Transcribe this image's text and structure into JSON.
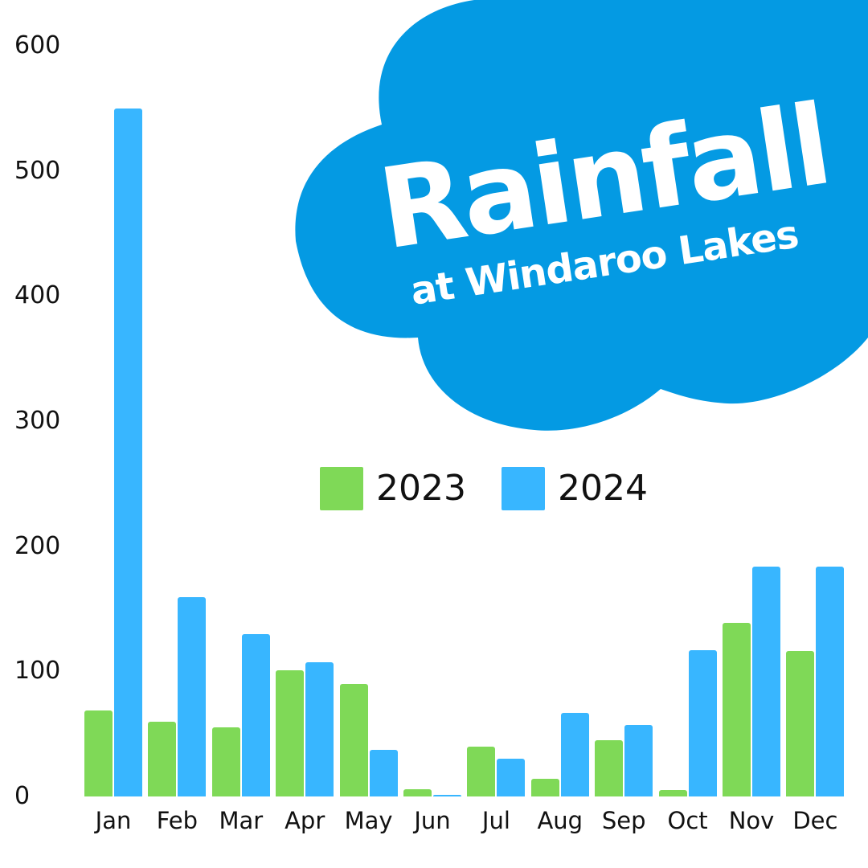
{
  "title": {
    "main": "Rainfall",
    "subtitle": "at Windaroo Lakes"
  },
  "colors": {
    "cloud": "#049ae3",
    "series_2023": "#7fd957",
    "series_2024": "#38b6ff",
    "text": "#111111",
    "background": "#ffffff"
  },
  "legend": [
    {
      "label": "2023",
      "color": "#7fd957"
    },
    {
      "label": "2024",
      "color": "#38b6ff"
    }
  ],
  "chart_data": {
    "type": "bar",
    "title": "Rainfall at Windaroo Lakes",
    "xlabel": "",
    "ylabel": "",
    "categories": [
      "Jan",
      "Feb",
      "Mar",
      "Apr",
      "May",
      "Jun",
      "Jul",
      "Aug",
      "Sep",
      "Oct",
      "Nov",
      "Dec"
    ],
    "series": [
      {
        "name": "2023",
        "color": "#7fd957",
        "values": [
          69,
          60,
          55,
          101,
          90,
          6,
          40,
          14,
          45,
          5,
          139,
          116
        ]
      },
      {
        "name": "2024",
        "color": "#38b6ff",
        "values": [
          550,
          159,
          130,
          107,
          37,
          1,
          30,
          67,
          57,
          117,
          184,
          184
        ]
      }
    ],
    "ylim": [
      0,
      600
    ],
    "yticks": [
      "0",
      "100",
      "200",
      "300",
      "400",
      "500",
      "600"
    ],
    "grid": false,
    "legend_position": "center, below title cloud"
  }
}
